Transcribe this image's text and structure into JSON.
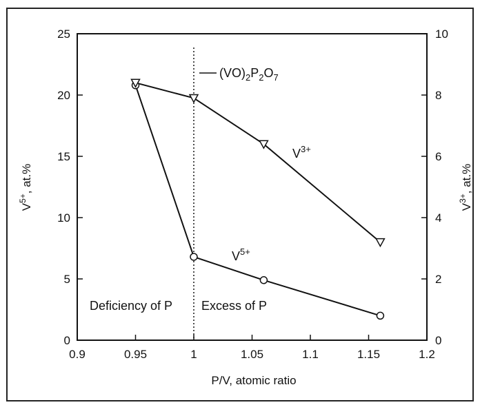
{
  "chart_data": {
    "type": "line",
    "xlabel": "P/V, atomic ratio",
    "ylabel_left": "V5+, at.%",
    "ylabel_right": "V3+, at.%",
    "xlim": [
      0.9,
      1.2
    ],
    "ylim_left": [
      0,
      25
    ],
    "ylim_right": [
      0,
      10
    ],
    "x_ticks": [
      "0.9",
      "0.95",
      "1",
      "1.05",
      "1.1",
      "1.15",
      "1.2"
    ],
    "y_left_ticks": [
      "0",
      "5",
      "10",
      "15",
      "20",
      "25"
    ],
    "y_right_ticks": [
      "0",
      "2",
      "4",
      "6",
      "8",
      "10"
    ],
    "series": [
      {
        "name": "V5+",
        "axis": "left",
        "marker": "circle",
        "x": [
          0.95,
          1.0,
          1.06,
          1.16
        ],
        "y": [
          20.8,
          6.8,
          4.9,
          2.0
        ]
      },
      {
        "name": "V3+",
        "axis": "right",
        "marker": "triangle-down",
        "x": [
          0.95,
          1.0,
          1.06,
          1.16
        ],
        "y": [
          8.4,
          7.9,
          6.4,
          3.2
        ]
      }
    ],
    "reference_line": {
      "x": 1.0,
      "style": "dotted",
      "label": "(VO)2P2O7"
    },
    "annotations": {
      "deficiency": "Deficiency of P",
      "excess": "Excess of P",
      "v3_label": "V3+",
      "v5_label": "V5+"
    },
    "grid": false
  }
}
